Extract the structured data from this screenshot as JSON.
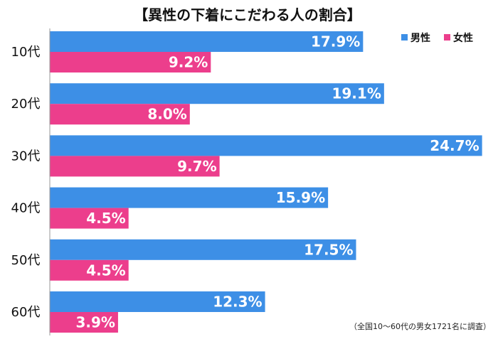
{
  "chart_data": {
    "type": "bar",
    "orientation": "horizontal",
    "title": "【異性の下着にこだわる人の割合】",
    "categories": [
      "10代",
      "20代",
      "30代",
      "40代",
      "50代",
      "60代"
    ],
    "series": [
      {
        "name": "男性",
        "color": "#3d8fe6",
        "values": [
          17.9,
          19.1,
          24.7,
          15.9,
          17.5,
          12.3
        ]
      },
      {
        "name": "女性",
        "color": "#ec3e8c",
        "values": [
          9.2,
          8.0,
          9.7,
          4.5,
          4.5,
          3.9
        ]
      }
    ],
    "value_suffix": "%",
    "xlim": [
      0,
      25
    ],
    "grid": false,
    "legend_position": "top-right",
    "note": "（全国10～60代の男女1721名に調査）"
  }
}
